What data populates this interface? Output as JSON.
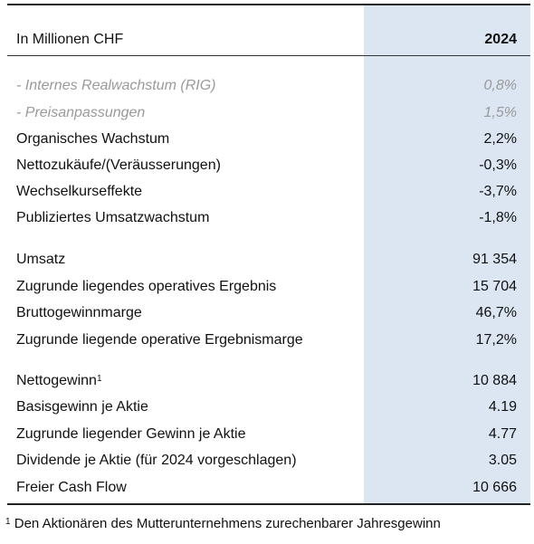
{
  "header": {
    "label": "In Millionen CHF",
    "year": "2024"
  },
  "rows": [
    {
      "label": "- Internes Realwachstum (RIG)",
      "value": "0,8%"
    },
    {
      "label": "- Preisanpassungen",
      "value": "1,5%"
    },
    {
      "label": "Organisches Wachstum",
      "value": "2,2%"
    },
    {
      "label": "Nettozukäufe/(Veräusserungen)",
      "value": "-0,3%"
    },
    {
      "label": "Wechselkurseffekte",
      "value": "-3,7%"
    },
    {
      "label": "Publiziertes Umsatzwachstum",
      "value": "-1,8%"
    },
    {
      "label": "Umsatz",
      "value": "91 354"
    },
    {
      "label": "Zugrunde liegendes operatives Ergebnis",
      "value": "15 704"
    },
    {
      "label": "Bruttogewinnmarge",
      "value": "46,7%"
    },
    {
      "label": "Zugrunde liegende operative Ergebnismarge",
      "value": "17,2%"
    },
    {
      "label": "Nettogewinn",
      "sup": "1",
      "value": "10 884"
    },
    {
      "label": "Basisgewinn je Aktie",
      "value": "4.19"
    },
    {
      "label": "Zugrunde liegender Gewinn je Aktie",
      "value": "4.77"
    },
    {
      "label": "Dividende je Aktie (für 2024 vorgeschlagen)",
      "value": "3.05"
    },
    {
      "label": "Freier Cash Flow",
      "value": "10 666"
    }
  ],
  "footnote": {
    "mark": "1",
    "text": "Den Aktionären des Mutterunternehmens zurechenbarer Jahresgewinn"
  },
  "colors": {
    "highlight_column": "#dbe6f2",
    "subtle_text": "#9a9a9a"
  }
}
